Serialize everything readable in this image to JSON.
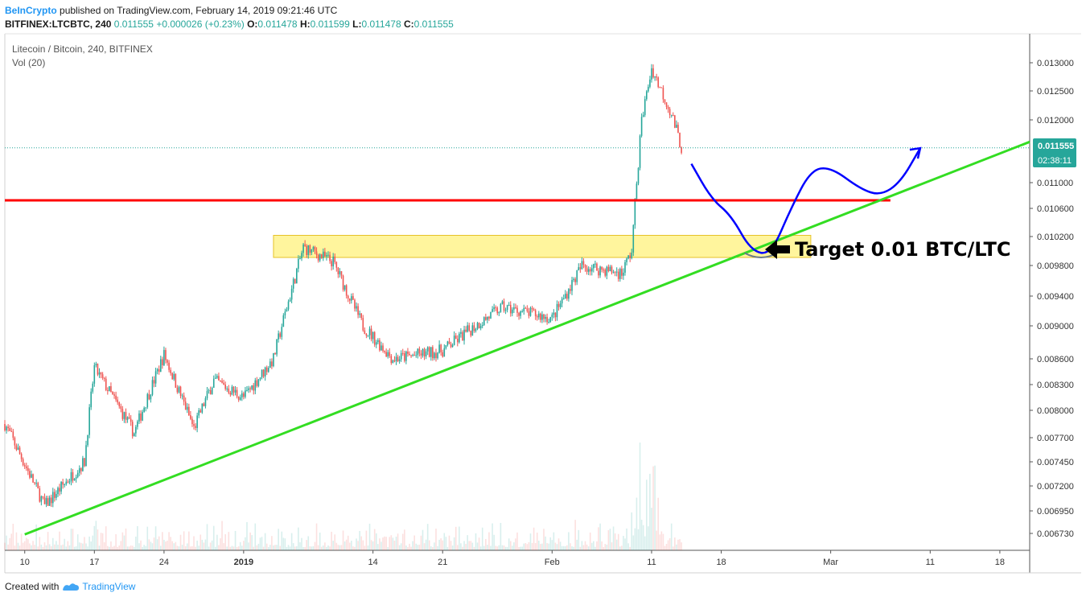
{
  "header": {
    "brand": "BeInCrypto",
    "published": "published on TradingView.com, February 14, 2019 09:21:46 UTC",
    "symbol": "BITFINEX:LTCBTC, 240",
    "last": "0.011555",
    "change": "+0.000026 (+0.23%)",
    "o_label": "O:",
    "o": "0.011478",
    "h_label": "H:",
    "h": "0.011599",
    "l_label": "L:",
    "l": "0.011478",
    "c_label": "C:",
    "c": "0.011555"
  },
  "pane": {
    "title": "Litecoin / Bitcoin, 240, BITFINEX",
    "indicator": "Vol (20)"
  },
  "price_badge": {
    "value": "0.011555",
    "countdown": "02:38:11",
    "color": "#26a69a"
  },
  "annotation": {
    "text": "Target 0.01 BTC/LTC"
  },
  "footer": {
    "created_with": "Created with",
    "brand": "TradingView"
  },
  "colors": {
    "up": "#26a69a",
    "down": "#ef5350",
    "support": "#ff0000",
    "trend": "#33dd22",
    "zone": "#fff59d",
    "projection": "#0000ff"
  },
  "chart_data": {
    "type": "candlestick",
    "symbol": "LTCBTC",
    "interval": "240",
    "exchange": "BITFINEX",
    "y_ticks": [
      "0.013000",
      "0.012500",
      "0.012000",
      "0.011000",
      "0.010600",
      "0.010200",
      "0.009800",
      "0.009400",
      "0.009000",
      "0.008600",
      "0.008300",
      "0.008000",
      "0.007700",
      "0.007450",
      "0.007200",
      "0.006950",
      "0.006730"
    ],
    "x_ticks": [
      "10",
      "17",
      "24",
      "2019",
      "14",
      "21",
      "Feb",
      "11",
      "18",
      "Mar",
      "11",
      "18"
    ],
    "x_range": [
      "2018-12-08",
      "2019-03-21"
    ],
    "ylim": [
      0.00665,
      0.0132
    ],
    "key_points": [
      {
        "date": "2018-12-08",
        "price": 0.00785
      },
      {
        "date": "2018-12-12",
        "price": 0.007
      },
      {
        "date": "2018-12-16",
        "price": 0.00745
      },
      {
        "date": "2018-12-17",
        "price": 0.0085
      },
      {
        "date": "2018-12-21",
        "price": 0.00775
      },
      {
        "date": "2018-12-24",
        "price": 0.00865
      },
      {
        "date": "2018-12-27",
        "price": 0.0078
      },
      {
        "date": "2018-12-29",
        "price": 0.00835
      },
      {
        "date": "2019-01-01",
        "price": 0.00815
      },
      {
        "date": "2019-01-04",
        "price": 0.0086
      },
      {
        "date": "2019-01-07",
        "price": 0.01005
      },
      {
        "date": "2019-01-10",
        "price": 0.00985
      },
      {
        "date": "2019-01-13",
        "price": 0.009
      },
      {
        "date": "2019-01-16",
        "price": 0.0086
      },
      {
        "date": "2019-01-21",
        "price": 0.0087
      },
      {
        "date": "2019-01-27",
        "price": 0.00925
      },
      {
        "date": "2019-02-01",
        "price": 0.0091
      },
      {
        "date": "2019-02-04",
        "price": 0.0098
      },
      {
        "date": "2019-02-08",
        "price": 0.0097
      },
      {
        "date": "2019-02-09",
        "price": 0.01
      },
      {
        "date": "2019-02-10",
        "price": 0.012
      },
      {
        "date": "2019-02-11",
        "price": 0.0129
      },
      {
        "date": "2019-02-13",
        "price": 0.0121
      },
      {
        "date": "2019-02-14",
        "price": 0.011555
      }
    ],
    "support_level": 0.0107,
    "target_zone": [
      0.0099,
      0.01015
    ],
    "trendline": [
      {
        "date": "2018-12-08",
        "price": 0.00672
      },
      {
        "date": "2019-03-21",
        "price": 0.01165
      }
    ],
    "last_price": 0.011555,
    "grid": false,
    "volume": "Vol (20)"
  }
}
